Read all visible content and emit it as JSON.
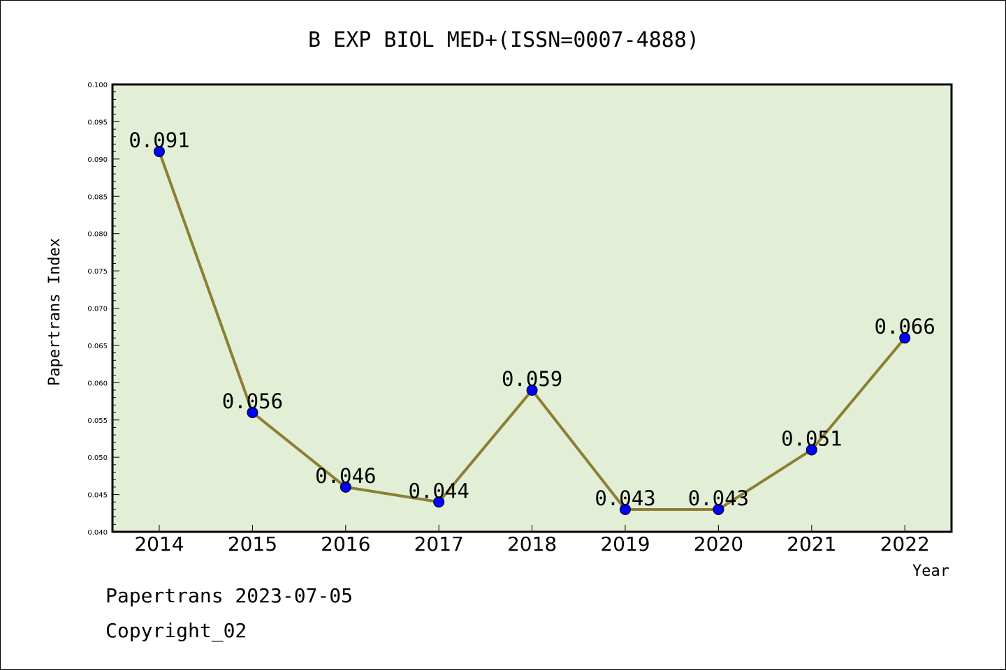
{
  "chart_data": {
    "type": "line",
    "title": "B EXP BIOL MED+(ISSN=0007-4888)",
    "xlabel": "Year",
    "ylabel": "Papertrans Index",
    "categories": [
      "2014",
      "2015",
      "2016",
      "2017",
      "2018",
      "2019",
      "2020",
      "2021",
      "2022"
    ],
    "values": [
      0.091,
      0.056,
      0.046,
      0.044,
      0.059,
      0.043,
      0.043,
      0.051,
      0.066
    ],
    "data_labels": [
      "0.091",
      "0.056",
      "0.046",
      "0.044",
      "0.059",
      "0.043",
      "0.043",
      "0.051",
      "0.066"
    ],
    "ylim": [
      0.04,
      0.1
    ],
    "yticks": [
      "0.040",
      "0.045",
      "0.050",
      "0.055",
      "0.060",
      "0.065",
      "0.070",
      "0.075",
      "0.080",
      "0.085",
      "0.090",
      "0.095",
      "0.100"
    ],
    "grid": false,
    "colors": {
      "plot_background": "#e2efd6",
      "line": "#8c7f35",
      "marker": "#0000ff"
    }
  },
  "footer": {
    "line1": "Papertrans 2023-07-05",
    "line2": "Copyright_02"
  }
}
